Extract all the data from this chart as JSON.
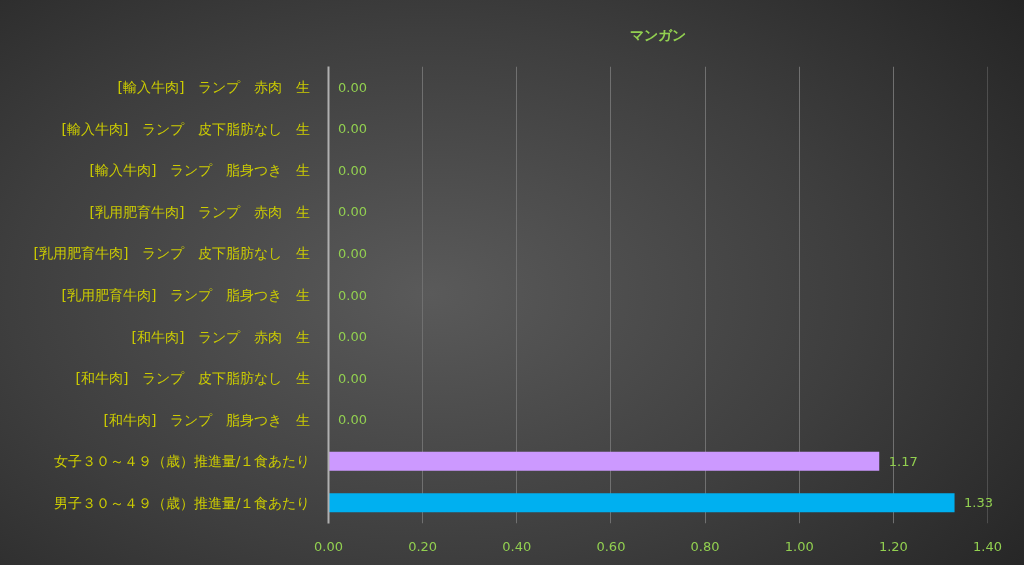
{
  "chart_data": {
    "type": "bar",
    "orientation": "horizontal",
    "title": "マンガン",
    "categories": [
      "[輸入牛肉]　ランプ　赤肉　生",
      "[輸入牛肉]　ランプ　皮下脂肪なし　生",
      "[輸入牛肉]　ランプ　脂身つき　生",
      "[乳用肥育牛肉]　ランプ　赤肉　生",
      "[乳用肥育牛肉]　ランプ　皮下脂肪なし　生",
      "[乳用肥育牛肉]　ランプ　脂身つき　生",
      "[和牛肉]　ランプ　赤肉　生",
      "[和牛肉]　ランプ　皮下脂肪なし　生",
      "[和牛肉]　ランプ　脂身つき　生",
      "女子３０～４９（歳）推進量/１食あたり",
      "男子３０～４９（歳）推進量/１食あたり"
    ],
    "values": [
      0,
      0,
      0,
      0,
      0,
      0,
      0,
      0,
      0,
      1.17,
      1.33
    ],
    "colors": [
      null,
      null,
      null,
      null,
      null,
      null,
      null,
      null,
      null,
      "#cc99ff",
      "#00b0f0"
    ],
    "value_labels": [
      "0.00",
      "0.00",
      "0.00",
      "0.00",
      "0.00",
      "0.00",
      "0.00",
      "0.00",
      "0.00",
      "1.17",
      "1.33"
    ],
    "xlim": [
      0,
      1.4
    ],
    "xticks": [
      {
        "value": 0,
        "label": "0.00"
      },
      {
        "value": 0.2,
        "label": "0.20"
      },
      {
        "value": 0.4,
        "label": "0.40"
      },
      {
        "value": 0.6,
        "label": "0.60"
      },
      {
        "value": 0.8,
        "label": "0.80"
      },
      {
        "value": 1,
        "label": "1.00"
      },
      {
        "value": 1.2,
        "label": "1.20"
      },
      {
        "value": 1.4,
        "label": "1.40"
      }
    ],
    "grid": "x"
  }
}
